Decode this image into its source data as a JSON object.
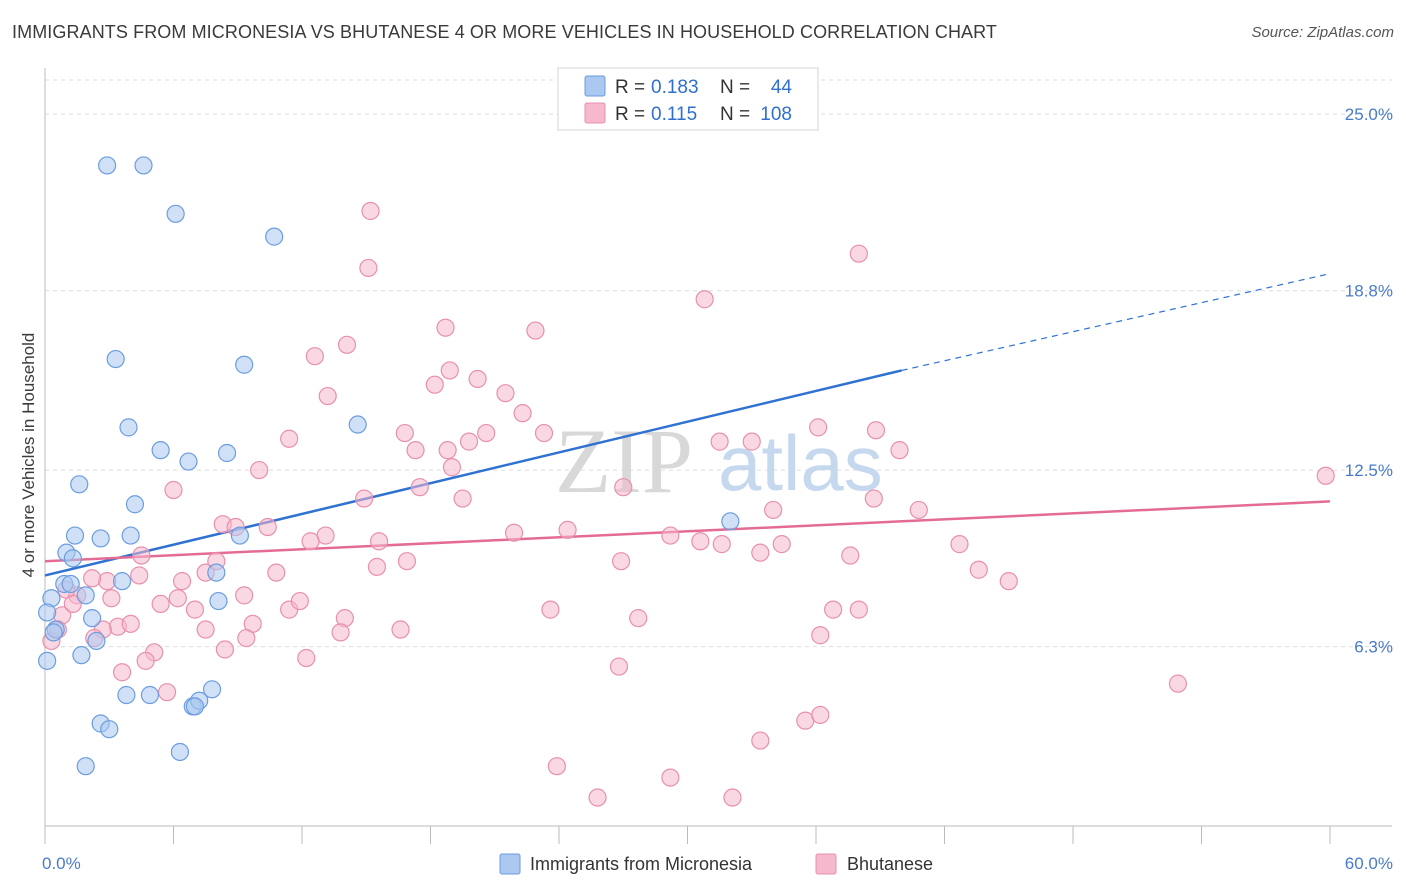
{
  "header": {
    "title": "IMMIGRANTS FROM MICRONESIA VS BHUTANESE 4 OR MORE VEHICLES IN HOUSEHOLD CORRELATION CHART",
    "source": "Source: ZipAtlas.com"
  },
  "watermark": {
    "zip": "ZIP",
    "atlas": "atlas"
  },
  "legend": {
    "r_label": "R =",
    "n_label": "N =",
    "rows": [
      {
        "r": "0.183",
        "n": "44",
        "color": "#aac8f0"
      },
      {
        "r": "0.115",
        "n": "108",
        "color": "#f5b8cc"
      }
    ]
  },
  "chart_data": {
    "type": "scatter",
    "ylabel": "4 or more Vehicles in Household",
    "xlim": [
      0,
      60
    ],
    "ylim": [
      0,
      26.2
    ],
    "x_tick_labels": [
      "0.0%",
      "60.0%"
    ],
    "y_ticks": [
      {
        "value": 6.3,
        "label": "6.3%"
      },
      {
        "value": 12.5,
        "label": "12.5%"
      },
      {
        "value": 18.8,
        "label": "18.8%"
      },
      {
        "value": 25.0,
        "label": "25.0%"
      }
    ],
    "grid": "horizontal dashed",
    "series": [
      {
        "name": "Immigrants from Micronesia",
        "color": "#aac8f0",
        "stroke": "#6b9de0",
        "trend": {
          "x0": 0,
          "y0": 8.8,
          "x1": 40,
          "y1": 16.0,
          "x_dash_end": 60,
          "y_dash_end": 19.4,
          "color": "#2f72d2"
        },
        "points": [
          [
            2.9,
            23.2
          ],
          [
            4.6,
            23.2
          ],
          [
            6.1,
            21.5
          ],
          [
            10.7,
            20.7
          ],
          [
            3.3,
            16.4
          ],
          [
            9.3,
            16.2
          ],
          [
            3.9,
            14.0
          ],
          [
            5.4,
            13.2
          ],
          [
            6.7,
            12.8
          ],
          [
            8.5,
            13.1
          ],
          [
            1.6,
            12.0
          ],
          [
            4.2,
            11.3
          ],
          [
            4.0,
            10.2
          ],
          [
            2.6,
            10.1
          ],
          [
            1.4,
            10.2
          ],
          [
            1.0,
            9.6
          ],
          [
            1.3,
            9.4
          ],
          [
            9.1,
            10.2
          ],
          [
            0.3,
            8.0
          ],
          [
            0.9,
            8.5
          ],
          [
            1.2,
            8.5
          ],
          [
            1.9,
            8.1
          ],
          [
            3.6,
            8.6
          ],
          [
            8.0,
            8.9
          ],
          [
            8.1,
            7.9
          ],
          [
            0.1,
            7.5
          ],
          [
            0.5,
            6.9
          ],
          [
            2.2,
            7.3
          ],
          [
            2.4,
            6.5
          ],
          [
            1.7,
            6.0
          ],
          [
            0.1,
            5.8
          ],
          [
            3.8,
            4.6
          ],
          [
            4.9,
            4.6
          ],
          [
            6.9,
            4.2
          ],
          [
            7.2,
            4.4
          ],
          [
            7.8,
            4.8
          ],
          [
            2.6,
            3.6
          ],
          [
            3.0,
            3.4
          ],
          [
            6.3,
            2.6
          ],
          [
            1.9,
            2.1
          ],
          [
            7.0,
            4.2
          ],
          [
            14.6,
            14.1
          ],
          [
            32.0,
            10.7
          ],
          [
            0.4,
            6.8
          ]
        ]
      },
      {
        "name": "Bhutanese",
        "color": "#f5b8cc",
        "stroke": "#e890ac",
        "trend": {
          "x0": 0,
          "y0": 9.3,
          "x1": 60,
          "y1": 11.4,
          "color": "#e46c94"
        },
        "points": [
          [
            15.2,
            21.6
          ],
          [
            15.1,
            19.6
          ],
          [
            38.0,
            20.1
          ],
          [
            30.8,
            18.5
          ],
          [
            22.9,
            17.4
          ],
          [
            14.1,
            16.9
          ],
          [
            12.6,
            16.5
          ],
          [
            18.7,
            17.5
          ],
          [
            18.9,
            16.0
          ],
          [
            20.2,
            15.7
          ],
          [
            18.2,
            15.5
          ],
          [
            13.2,
            15.1
          ],
          [
            21.5,
            15.2
          ],
          [
            22.3,
            14.5
          ],
          [
            16.8,
            13.8
          ],
          [
            20.6,
            13.8
          ],
          [
            19.8,
            13.5
          ],
          [
            23.3,
            13.8
          ],
          [
            17.3,
            13.2
          ],
          [
            11.4,
            13.6
          ],
          [
            18.8,
            13.2
          ],
          [
            31.5,
            13.5
          ],
          [
            33.0,
            13.5
          ],
          [
            36.1,
            14.0
          ],
          [
            38.8,
            13.9
          ],
          [
            39.9,
            13.2
          ],
          [
            10.0,
            12.5
          ],
          [
            19.0,
            12.6
          ],
          [
            17.5,
            11.9
          ],
          [
            27.0,
            11.9
          ],
          [
            14.9,
            11.5
          ],
          [
            19.5,
            11.5
          ],
          [
            6.0,
            11.8
          ],
          [
            38.7,
            11.5
          ],
          [
            40.8,
            11.1
          ],
          [
            34.0,
            11.1
          ],
          [
            8.3,
            10.6
          ],
          [
            8.9,
            10.5
          ],
          [
            10.4,
            10.5
          ],
          [
            24.4,
            10.4
          ],
          [
            21.9,
            10.3
          ],
          [
            13.1,
            10.2
          ],
          [
            12.4,
            10.0
          ],
          [
            15.6,
            10.0
          ],
          [
            29.2,
            10.2
          ],
          [
            30.6,
            10.0
          ],
          [
            31.6,
            9.9
          ],
          [
            34.4,
            9.9
          ],
          [
            33.4,
            9.6
          ],
          [
            37.6,
            9.5
          ],
          [
            42.7,
            9.9
          ],
          [
            8.0,
            9.3
          ],
          [
            16.9,
            9.3
          ],
          [
            15.5,
            9.1
          ],
          [
            26.9,
            9.3
          ],
          [
            43.6,
            9.0
          ],
          [
            45.0,
            8.6
          ],
          [
            2.9,
            8.6
          ],
          [
            7.5,
            8.9
          ],
          [
            10.8,
            8.9
          ],
          [
            4.4,
            8.8
          ],
          [
            6.4,
            8.6
          ],
          [
            1.5,
            8.1
          ],
          [
            2.2,
            8.7
          ],
          [
            3.1,
            8.0
          ],
          [
            5.4,
            7.8
          ],
          [
            6.2,
            8.0
          ],
          [
            7.0,
            7.6
          ],
          [
            9.3,
            8.1
          ],
          [
            11.4,
            7.6
          ],
          [
            11.9,
            7.9
          ],
          [
            14.0,
            7.3
          ],
          [
            23.6,
            7.6
          ],
          [
            36.8,
            7.6
          ],
          [
            38.0,
            7.6
          ],
          [
            27.7,
            7.3
          ],
          [
            9.7,
            7.1
          ],
          [
            3.4,
            7.0
          ],
          [
            2.7,
            6.9
          ],
          [
            4.0,
            7.1
          ],
          [
            7.5,
            6.9
          ],
          [
            9.4,
            6.6
          ],
          [
            13.8,
            6.8
          ],
          [
            16.6,
            6.9
          ],
          [
            36.2,
            6.7
          ],
          [
            2.3,
            6.6
          ],
          [
            8.4,
            6.2
          ],
          [
            5.1,
            6.1
          ],
          [
            4.7,
            5.8
          ],
          [
            12.2,
            5.9
          ],
          [
            3.6,
            5.4
          ],
          [
            26.8,
            5.6
          ],
          [
            52.9,
            5.0
          ],
          [
            5.7,
            4.7
          ],
          [
            35.5,
            3.7
          ],
          [
            36.2,
            3.9
          ],
          [
            33.4,
            3.0
          ],
          [
            23.9,
            2.1
          ],
          [
            29.2,
            1.7
          ],
          [
            25.8,
            1.0
          ],
          [
            32.1,
            1.0
          ],
          [
            0.3,
            6.5
          ],
          [
            0.8,
            7.4
          ],
          [
            1.0,
            8.3
          ],
          [
            59.8,
            12.3
          ],
          [
            1.3,
            7.8
          ],
          [
            0.6,
            6.9
          ],
          [
            4.5,
            9.5
          ]
        ]
      }
    ],
    "bottom_legend": [
      "Immigrants from Micronesia",
      "Bhutanese"
    ]
  }
}
